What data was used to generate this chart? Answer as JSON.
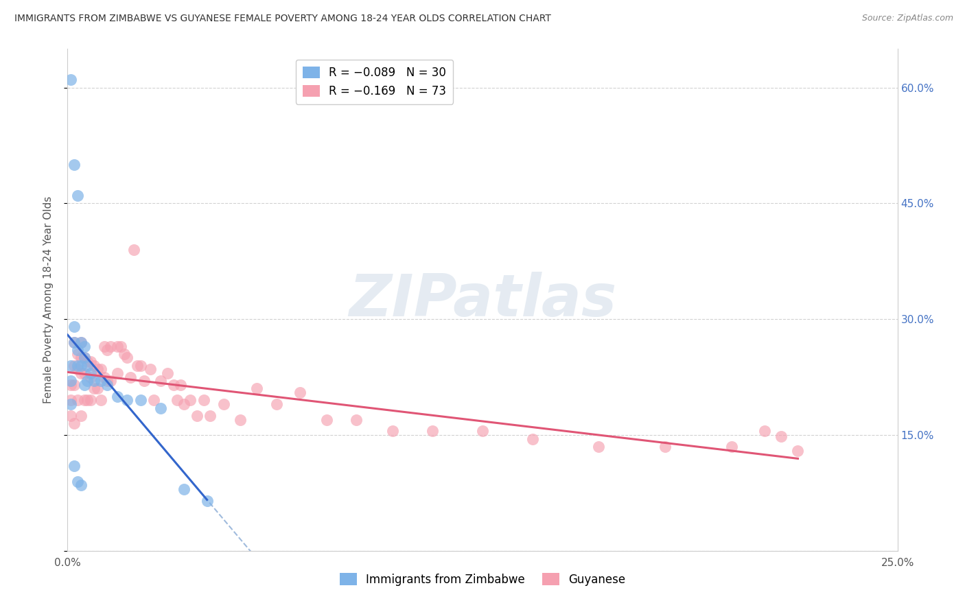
{
  "title": "IMMIGRANTS FROM ZIMBABWE VS GUYANESE FEMALE POVERTY AMONG 18-24 YEAR OLDS CORRELATION CHART",
  "source": "Source: ZipAtlas.com",
  "ylabel": "Female Poverty Among 18-24 Year Olds",
  "xlabel_blue": "Immigrants from Zimbabwe",
  "xlabel_pink": "Guyanese",
  "xlim": [
    0.0,
    0.25
  ],
  "ylim": [
    0.0,
    0.65
  ],
  "ytick_vals": [
    0.0,
    0.15,
    0.3,
    0.45,
    0.6
  ],
  "ytick_labels_right": [
    "",
    "15.0%",
    "30.0%",
    "45.0%",
    "60.0%"
  ],
  "xtick_vals": [
    0.0,
    0.05,
    0.1,
    0.15,
    0.2,
    0.25
  ],
  "xtick_labels": [
    "0.0%",
    "",
    "",
    "",
    "",
    "25.0%"
  ],
  "legend_blue_r": "R = −0.089",
  "legend_blue_n": "N = 30",
  "legend_pink_r": "R = −0.169",
  "legend_pink_n": "N = 73",
  "blue_color": "#7eb3e8",
  "pink_color": "#f5a0b0",
  "blue_line_color": "#3366cc",
  "blue_dash_color": "#a0bbdd",
  "pink_line_color": "#e05575",
  "watermark_zip_color": "#c8d8e8",
  "watermark_atlas_color": "#c8c8d0",
  "blue_x": [
    0.001,
    0.001,
    0.001,
    0.001,
    0.002,
    0.002,
    0.002,
    0.002,
    0.003,
    0.003,
    0.003,
    0.003,
    0.004,
    0.004,
    0.004,
    0.005,
    0.005,
    0.005,
    0.006,
    0.006,
    0.007,
    0.008,
    0.01,
    0.012,
    0.015,
    0.018,
    0.022,
    0.028,
    0.035,
    0.042
  ],
  "blue_y": [
    0.61,
    0.24,
    0.22,
    0.19,
    0.5,
    0.29,
    0.27,
    0.11,
    0.46,
    0.26,
    0.24,
    0.09,
    0.27,
    0.24,
    0.085,
    0.265,
    0.25,
    0.215,
    0.24,
    0.22,
    0.23,
    0.22,
    0.22,
    0.215,
    0.2,
    0.195,
    0.195,
    0.185,
    0.08,
    0.065
  ],
  "pink_x": [
    0.001,
    0.001,
    0.001,
    0.002,
    0.002,
    0.002,
    0.002,
    0.003,
    0.003,
    0.003,
    0.004,
    0.004,
    0.004,
    0.004,
    0.005,
    0.005,
    0.005,
    0.006,
    0.006,
    0.007,
    0.007,
    0.007,
    0.008,
    0.008,
    0.009,
    0.009,
    0.01,
    0.01,
    0.011,
    0.011,
    0.012,
    0.012,
    0.013,
    0.013,
    0.015,
    0.015,
    0.016,
    0.017,
    0.018,
    0.019,
    0.02,
    0.021,
    0.022,
    0.023,
    0.025,
    0.026,
    0.028,
    0.03,
    0.032,
    0.033,
    0.034,
    0.035,
    0.037,
    0.039,
    0.041,
    0.043,
    0.047,
    0.052,
    0.057,
    0.063,
    0.07,
    0.078,
    0.087,
    0.098,
    0.11,
    0.125,
    0.14,
    0.16,
    0.18,
    0.2,
    0.21,
    0.215,
    0.22
  ],
  "pink_y": [
    0.215,
    0.195,
    0.175,
    0.27,
    0.24,
    0.215,
    0.165,
    0.255,
    0.235,
    0.195,
    0.27,
    0.25,
    0.23,
    0.175,
    0.25,
    0.23,
    0.195,
    0.245,
    0.195,
    0.245,
    0.225,
    0.195,
    0.24,
    0.21,
    0.235,
    0.21,
    0.235,
    0.195,
    0.265,
    0.225,
    0.26,
    0.22,
    0.265,
    0.22,
    0.265,
    0.23,
    0.265,
    0.255,
    0.25,
    0.225,
    0.39,
    0.24,
    0.24,
    0.22,
    0.235,
    0.195,
    0.22,
    0.23,
    0.215,
    0.195,
    0.215,
    0.19,
    0.195,
    0.175,
    0.195,
    0.175,
    0.19,
    0.17,
    0.21,
    0.19,
    0.205,
    0.17,
    0.17,
    0.155,
    0.155,
    0.155,
    0.145,
    0.135,
    0.135,
    0.135,
    0.155,
    0.148,
    0.13
  ]
}
